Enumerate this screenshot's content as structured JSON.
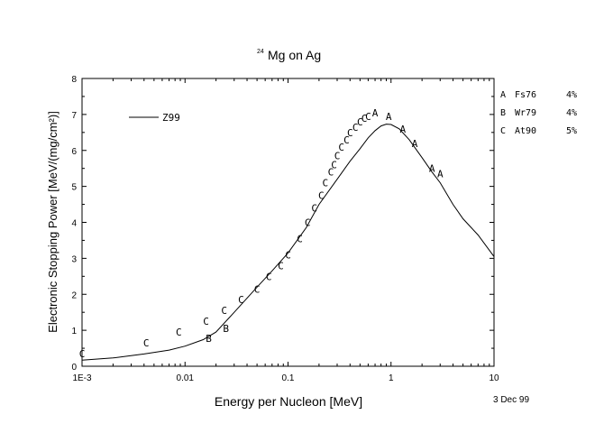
{
  "chart_data": {
    "type": "scatter",
    "title_sup": "24",
    "title": "Mg on Ag",
    "xlabel": "Energy per Nucleon [MeV]",
    "ylabel": "Electronic Stopping Power [MeV/(mg/cm²)]",
    "x_scale": "log",
    "xlim": [
      0.001,
      10
    ],
    "ylim": [
      0,
      8
    ],
    "x_ticks": [
      0.001,
      0.01,
      0.1,
      1,
      10
    ],
    "x_tick_labels": [
      "1E-3",
      "0.01",
      "0.1",
      "1",
      "10"
    ],
    "y_ticks": [
      0,
      1,
      2,
      3,
      4,
      5,
      6,
      7,
      8
    ],
    "y_tick_labels": [
      "0",
      "1",
      "2",
      "3",
      "4",
      "5",
      "6",
      "7",
      "8"
    ],
    "date_label": "3 Dec 99",
    "curve": {
      "name": "Z99",
      "x": [
        0.001,
        0.002,
        0.004,
        0.007,
        0.01,
        0.015,
        0.02,
        0.03,
        0.05,
        0.07,
        0.1,
        0.15,
        0.2,
        0.3,
        0.4,
        0.5,
        0.6,
        0.7,
        0.8,
        0.9,
        1.0,
        1.2,
        1.5,
        2.0,
        2.5,
        3.0,
        4.0,
        5.0,
        7.0,
        10.0
      ],
      "y": [
        0.17,
        0.23,
        0.34,
        0.45,
        0.56,
        0.74,
        0.95,
        1.5,
        2.2,
        2.65,
        3.15,
        3.85,
        4.5,
        5.2,
        5.7,
        6.05,
        6.35,
        6.55,
        6.68,
        6.73,
        6.72,
        6.6,
        6.3,
        5.8,
        5.4,
        5.1,
        4.5,
        4.1,
        3.65,
        3.05
      ]
    },
    "legend": [
      {
        "marker": "A",
        "ref": "Fs76",
        "error": "4%"
      },
      {
        "marker": "B",
        "ref": "Wr79",
        "error": "4%"
      },
      {
        "marker": "C",
        "ref": "At90",
        "error": "5%"
      }
    ],
    "series": [
      {
        "marker": "A",
        "x": [
          0.7,
          0.95,
          1.3,
          1.7,
          2.5,
          3.0
        ],
        "y": [
          7.05,
          6.95,
          6.6,
          6.2,
          5.5,
          5.35
        ]
      },
      {
        "marker": "B",
        "x": [
          0.017,
          0.025
        ],
        "y": [
          0.78,
          1.05
        ]
      },
      {
        "marker": "C",
        "x": [
          0.001,
          0.0042,
          0.0087,
          0.016,
          0.024,
          0.035,
          0.05,
          0.065,
          0.085,
          0.1,
          0.13,
          0.155,
          0.18,
          0.21,
          0.23,
          0.26,
          0.28,
          0.3,
          0.33,
          0.37,
          0.4,
          0.45,
          0.5,
          0.55,
          0.6
        ],
        "y": [
          0.35,
          0.65,
          0.95,
          1.25,
          1.55,
          1.85,
          2.15,
          2.5,
          2.8,
          3.1,
          3.55,
          4.0,
          4.4,
          4.75,
          5.1,
          5.4,
          5.6,
          5.85,
          6.1,
          6.3,
          6.5,
          6.65,
          6.8,
          6.9,
          6.95
        ]
      }
    ]
  }
}
